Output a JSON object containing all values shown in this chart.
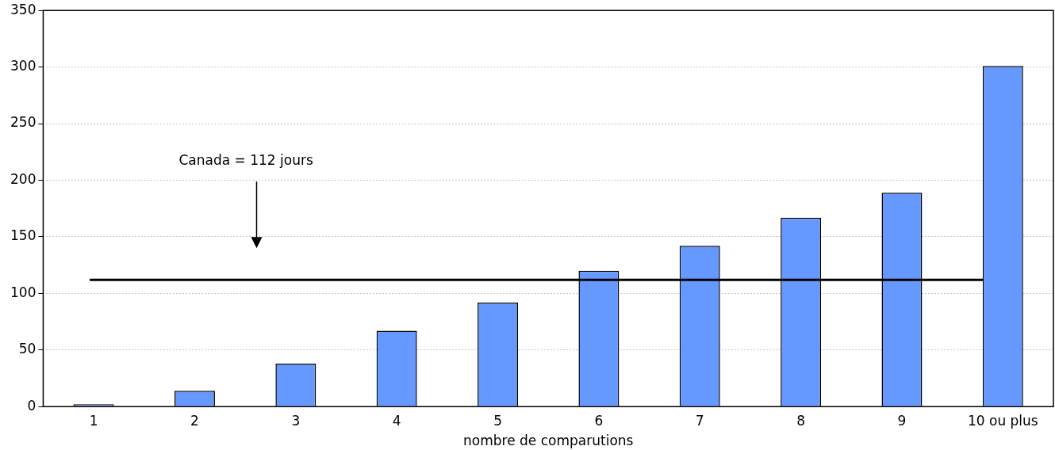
{
  "chart_data": {
    "type": "bar",
    "xlabel": "nombre de comparutions",
    "categories": [
      "1",
      "2",
      "3",
      "4",
      "5",
      "6",
      "7",
      "8",
      "9",
      "10 ou plus"
    ],
    "values": [
      2,
      14,
      38,
      67,
      92,
      120,
      142,
      167,
      189,
      301
    ],
    "color": "#6699ff",
    "ylim": [
      0,
      350
    ],
    "yticks": [
      0,
      50,
      100,
      150,
      200,
      250,
      300,
      350
    ],
    "grid": "y",
    "legend": false,
    "ref_lines": [
      {
        "axis": "y",
        "value": 112,
        "label": "Canada = 112 jours",
        "color": "#000000"
      }
    ]
  }
}
